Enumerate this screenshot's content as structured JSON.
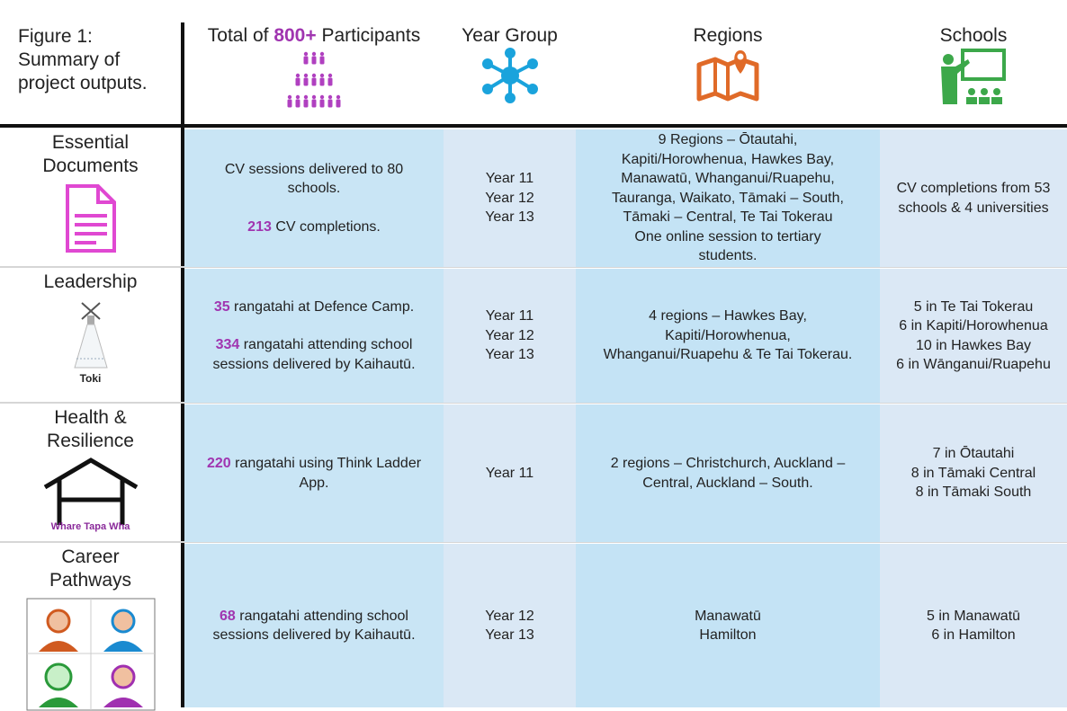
{
  "caption": [
    "Figure 1:",
    "Summary of",
    "project outputs."
  ],
  "header": [
    {
      "prefix": "Total of ",
      "highlight": "800+",
      "suffix": " Participants"
    },
    "Year Group",
    "Regions",
    "Schools"
  ],
  "rows": [
    {
      "label": [
        "Essential",
        "Documents"
      ],
      "participants": [
        [
          "CV sessions delivered to 80",
          "schools."
        ],
        [
          {
            "highlight": "213",
            "text": " CV completions."
          }
        ]
      ],
      "year_group": [
        "Year 11",
        "Year 12",
        "Year 13"
      ],
      "regions": [
        "9 Regions – Ōtautahi,",
        "Kapiti/Horowhenua, Hawkes Bay,",
        "Manawatū, Whanganui/Ruapehu,",
        "Tauranga, Waikato, Tāmaki – South,",
        "Tāmaki – Central, Te Tai Tokerau",
        "One online session to tertiary",
        "students."
      ],
      "schools": [
        "CV completions from 53",
        "schools & 4 universities"
      ]
    },
    {
      "label": [
        "Leadership"
      ],
      "icon_caption": "Toki",
      "participants": [
        [
          {
            "highlight": "35",
            "text": " rangatahi at Defence Camp."
          }
        ],
        [
          {
            "highlight": "334",
            "text": " rangatahi attending school"
          },
          "sessions delivered by Kaihautū."
        ]
      ],
      "year_group": [
        "Year 11",
        "Year 12",
        "Year 13"
      ],
      "regions": [
        "4 regions – Hawkes Bay,",
        "Kapiti/Horowhenua,",
        "Whanganui/Ruapehu & Te Tai Tokerau."
      ],
      "schools": [
        "5 in Te Tai Tokerau",
        "6 in Kapiti/Horowhenua",
        "10 in Hawkes Bay",
        "6 in Wānganui/Ruapehu"
      ]
    },
    {
      "label": [
        "Health &",
        "Resilience"
      ],
      "icon_caption": "Whare Tapa Wha",
      "participants": [
        [
          {
            "highlight": "220",
            "text": " rangatahi using Think Ladder"
          },
          "App."
        ]
      ],
      "year_group": [
        "Year 11"
      ],
      "regions": [
        "2 regions – Christchurch, Auckland –",
        "Central, Auckland – South."
      ],
      "schools": [
        "7 in Ōtautahi",
        "8 in Tāmaki Central",
        "8 in Tāmaki South"
      ]
    },
    {
      "label": [
        "Career",
        "Pathways"
      ],
      "participants": [
        [
          {
            "highlight": "68",
            "text": " rangatahi attending school"
          },
          "sessions delivered by Kaihautū."
        ]
      ],
      "year_group": [
        "Year 12",
        "Year 13"
      ],
      "regions": [
        "Manawatū",
        "Hamilton"
      ],
      "schools": [
        "5 in Manawatū",
        "6 in Hamilton"
      ]
    }
  ]
}
